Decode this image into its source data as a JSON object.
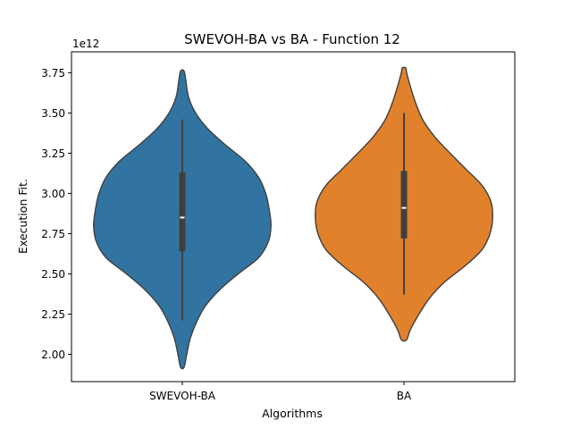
{
  "chart_data": {
    "type": "violin",
    "title": "SWEVOH-BA vs BA - Function 12",
    "xlabel": "Algorithms",
    "ylabel": "Execution Fit.",
    "y_offset_label": "1e12",
    "ylim": [
      1.83,
      3.88
    ],
    "y_ticks": [
      2.0,
      2.25,
      2.5,
      2.75,
      3.0,
      3.25,
      3.5,
      3.75
    ],
    "y_tick_labels": [
      "2.00",
      "2.25",
      "2.50",
      "2.75",
      "3.00",
      "3.25",
      "3.50",
      "3.75"
    ],
    "categories": [
      "SWEVOH-BA",
      "BA"
    ],
    "series": [
      {
        "category": "SWEVOH-BA",
        "color": "#3274a1",
        "min": 2.21,
        "q1": 2.64,
        "median": 2.85,
        "q3": 3.13,
        "max": 3.46,
        "density": [
          [
            1.92,
            0.02
          ],
          [
            2.0,
            0.05
          ],
          [
            2.1,
            0.09
          ],
          [
            2.2,
            0.16
          ],
          [
            2.3,
            0.26
          ],
          [
            2.4,
            0.42
          ],
          [
            2.5,
            0.63
          ],
          [
            2.6,
            0.86
          ],
          [
            2.7,
            0.97
          ],
          [
            2.8,
            1.0
          ],
          [
            2.9,
            0.98
          ],
          [
            3.0,
            0.94
          ],
          [
            3.1,
            0.86
          ],
          [
            3.2,
            0.71
          ],
          [
            3.3,
            0.49
          ],
          [
            3.4,
            0.29
          ],
          [
            3.5,
            0.15
          ],
          [
            3.6,
            0.07
          ],
          [
            3.7,
            0.04
          ],
          [
            3.76,
            0.02
          ]
        ]
      },
      {
        "category": "BA",
        "color": "#e1812c",
        "min": 2.37,
        "q1": 2.72,
        "median": 2.91,
        "q3": 3.14,
        "max": 3.5,
        "density": [
          [
            2.09,
            0.03
          ],
          [
            2.15,
            0.07
          ],
          [
            2.25,
            0.17
          ],
          [
            2.35,
            0.29
          ],
          [
            2.45,
            0.46
          ],
          [
            2.55,
            0.69
          ],
          [
            2.65,
            0.88
          ],
          [
            2.75,
            0.97
          ],
          [
            2.85,
            1.0
          ],
          [
            2.95,
            0.98
          ],
          [
            3.05,
            0.88
          ],
          [
            3.15,
            0.7
          ],
          [
            3.25,
            0.52
          ],
          [
            3.35,
            0.35
          ],
          [
            3.45,
            0.22
          ],
          [
            3.55,
            0.14
          ],
          [
            3.65,
            0.08
          ],
          [
            3.75,
            0.03
          ],
          [
            3.78,
            0.02
          ]
        ]
      }
    ],
    "grid": false,
    "legend": "none"
  }
}
